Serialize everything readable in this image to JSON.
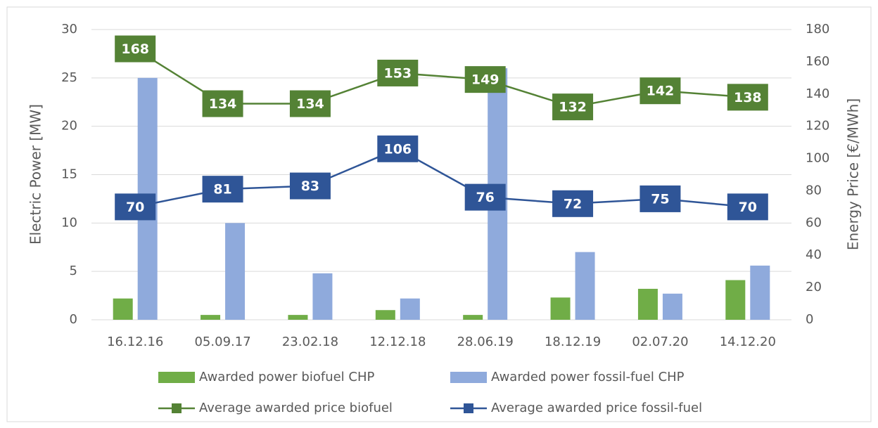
{
  "chart_data": {
    "type": "bar",
    "categories": [
      "16.12.16",
      "05.09.17",
      "23.02.18",
      "12.12.18",
      "28.06.19",
      "18.12.19",
      "02.07.20",
      "14.12.20"
    ],
    "series": [
      {
        "name": "Awarded power biofuel CHP",
        "type": "bar",
        "color": "#70ad47",
        "values": [
          2.2,
          0.5,
          0.5,
          1.0,
          0.5,
          2.3,
          3.2,
          4.1
        ]
      },
      {
        "name": "Awarded power fossil-fuel CHP",
        "type": "bar",
        "color": "#8faadc",
        "values": [
          25,
          10,
          4.8,
          2.2,
          26,
          7,
          2.7,
          5.6
        ]
      },
      {
        "name": "Average awarded price biofuel",
        "type": "line",
        "axis": "y2",
        "color": "#548235",
        "values": [
          168,
          134,
          134,
          153,
          149,
          132,
          142,
          138
        ]
      },
      {
        "name": "Average awarded price fossil-fuel",
        "type": "line",
        "axis": "y2",
        "color": "#2f5597",
        "values": [
          70,
          81,
          83,
          106,
          76,
          72,
          75,
          70
        ]
      }
    ],
    "ylabel": "Electric Power [MW]",
    "y2label": "Energy Price [€/MWh]",
    "ylim": [
      0,
      30
    ],
    "yticks": [
      0,
      5,
      10,
      15,
      20,
      25,
      30
    ],
    "y2lim": [
      0,
      180
    ],
    "y2ticks": [
      0,
      20,
      40,
      60,
      80,
      100,
      120,
      140,
      160,
      180
    ],
    "grid": true,
    "legend": "bottom"
  }
}
